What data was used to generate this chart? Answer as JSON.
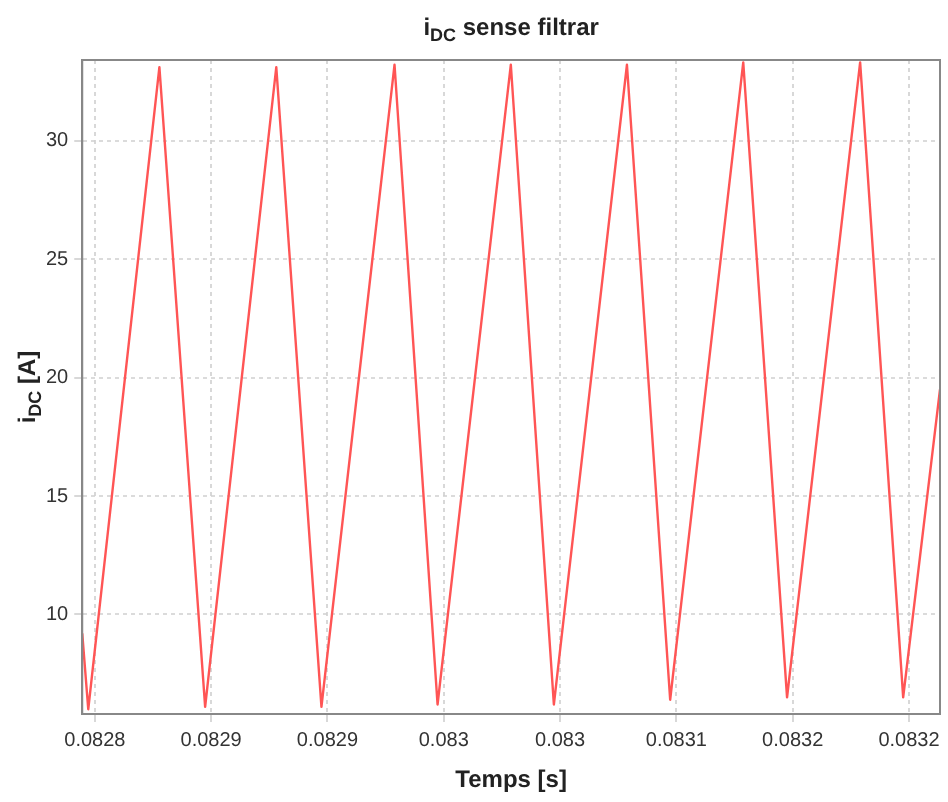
{
  "chart_data": {
    "type": "line",
    "title": "i$_{DC}$ sense filtrar",
    "xlabel": "Temps [s]",
    "ylabel": "i$_{DC}$ [A]",
    "x": [
      0.0828035,
      0.0828066,
      0.0828433,
      0.0828669,
      0.0829036,
      0.0829269,
      0.0829646,
      0.0829868,
      0.0830246,
      0.0830468,
      0.0830845,
      0.0831068,
      0.0831445,
      0.0831671,
      0.0832048,
      0.083227,
      0.083246
    ],
    "series": [
      {
        "color": "#ff5555",
        "values": [
          9.2,
          6.0,
          33.1,
          6.1,
          33.1,
          6.1,
          33.2,
          6.2,
          33.2,
          6.2,
          33.2,
          6.4,
          33.3,
          6.5,
          33.3,
          6.5,
          19.5
        ]
      }
    ],
    "xlim": [
      0.0828035,
      0.083246
    ],
    "xticks": [
      {
        "value": 0.08281,
        "label": "0.0828"
      },
      {
        "value": 0.08287,
        "label": "0.0829"
      },
      {
        "value": 0.08293,
        "label": "0.0829"
      },
      {
        "value": 0.08299,
        "label": "0.083"
      },
      {
        "value": 0.08305,
        "label": "0.083"
      },
      {
        "value": 0.08311,
        "label": "0.0831"
      },
      {
        "value": 0.08317,
        "label": "0.0832"
      },
      {
        "value": 0.08323,
        "label": "0.0832"
      }
    ],
    "ylim": [
      5.8,
      33.4
    ],
    "yticks": [
      10,
      15,
      20,
      25,
      30
    ],
    "grid": true,
    "legend": false,
    "marker": "none",
    "line_style": "solid"
  }
}
